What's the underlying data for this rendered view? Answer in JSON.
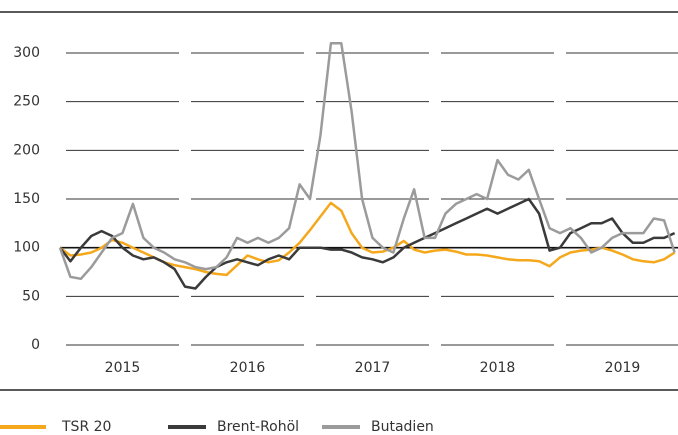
{
  "chart_data": {
    "type": "line",
    "x": [
      2015,
      2015.083,
      2015.167,
      2015.25,
      2015.333,
      2015.417,
      2015.5,
      2015.583,
      2015.667,
      2015.75,
      2015.833,
      2015.917,
      2016,
      2016.083,
      2016.167,
      2016.25,
      2016.333,
      2016.417,
      2016.5,
      2016.583,
      2016.667,
      2016.75,
      2016.833,
      2016.917,
      2017,
      2017.083,
      2017.167,
      2017.25,
      2017.333,
      2017.417,
      2017.5,
      2017.583,
      2017.667,
      2017.75,
      2017.833,
      2017.917,
      2018,
      2018.083,
      2018.167,
      2018.25,
      2018.333,
      2018.417,
      2018.5,
      2018.583,
      2018.667,
      2018.75,
      2018.833,
      2018.917,
      2019,
      2019.083,
      2019.167,
      2019.25,
      2019.333,
      2019.417,
      2019.5,
      2019.583,
      2019.667,
      2019.75,
      2019.833,
      2019.917
    ],
    "series": [
      {
        "name": "TSR 20",
        "color": "#f5a81c",
        "values": [
          100,
          92,
          93,
          95,
          100,
          108,
          105,
          100,
          95,
          90,
          85,
          82,
          80,
          78,
          75,
          73,
          72,
          82,
          92,
          88,
          85,
          87,
          95,
          105,
          118,
          132,
          146,
          138,
          115,
          100,
          95,
          96,
          100,
          107,
          98,
          95,
          97,
          98,
          96,
          93,
          93,
          92,
          90,
          88,
          87,
          87,
          86,
          81,
          90,
          95,
          97,
          98,
          100,
          97,
          93,
          88,
          86,
          85,
          88,
          95
        ]
      },
      {
        "name": "Brent-Rohöl",
        "color": "#3a3a3a",
        "values": [
          100,
          86,
          100,
          112,
          117,
          112,
          100,
          92,
          88,
          90,
          85,
          78,
          60,
          58,
          70,
          80,
          85,
          88,
          85,
          82,
          88,
          92,
          88,
          100,
          100,
          100,
          98,
          98,
          95,
          90,
          88,
          85,
          90,
          100,
          105,
          110,
          115,
          120,
          125,
          130,
          135,
          140,
          135,
          140,
          145,
          150,
          135,
          97,
          100,
          115,
          120,
          125,
          125,
          130,
          115,
          105,
          105,
          110,
          110,
          115
        ]
      },
      {
        "name": "Butadien",
        "color": "#9b9b9b",
        "values": [
          100,
          70,
          68,
          80,
          95,
          110,
          115,
          145,
          110,
          100,
          95,
          88,
          85,
          80,
          78,
          80,
          90,
          110,
          105,
          110,
          105,
          110,
          120,
          165,
          150,
          215,
          310,
          310,
          240,
          150,
          110,
          100,
          95,
          130,
          160,
          110,
          110,
          135,
          145,
          150,
          155,
          150,
          190,
          175,
          170,
          180,
          150,
          120,
          115,
          120,
          110,
          95,
          100,
          110,
          115,
          115,
          115,
          130,
          128,
          95
        ]
      }
    ],
    "xlim": [
      2015,
      2020
    ],
    "xticks": [
      {
        "value": 2015.5,
        "label": "2015"
      },
      {
        "value": 2016.5,
        "label": "2016"
      },
      {
        "value": 2017.5,
        "label": "2017"
      },
      {
        "value": 2018.5,
        "label": "2018"
      },
      {
        "value": 2019.5,
        "label": "2019"
      }
    ],
    "ylim": [
      0,
      310
    ],
    "yticks": [
      0,
      50,
      100,
      150,
      200,
      250,
      300
    ],
    "highlight_ytick": 100,
    "grid": true
  }
}
